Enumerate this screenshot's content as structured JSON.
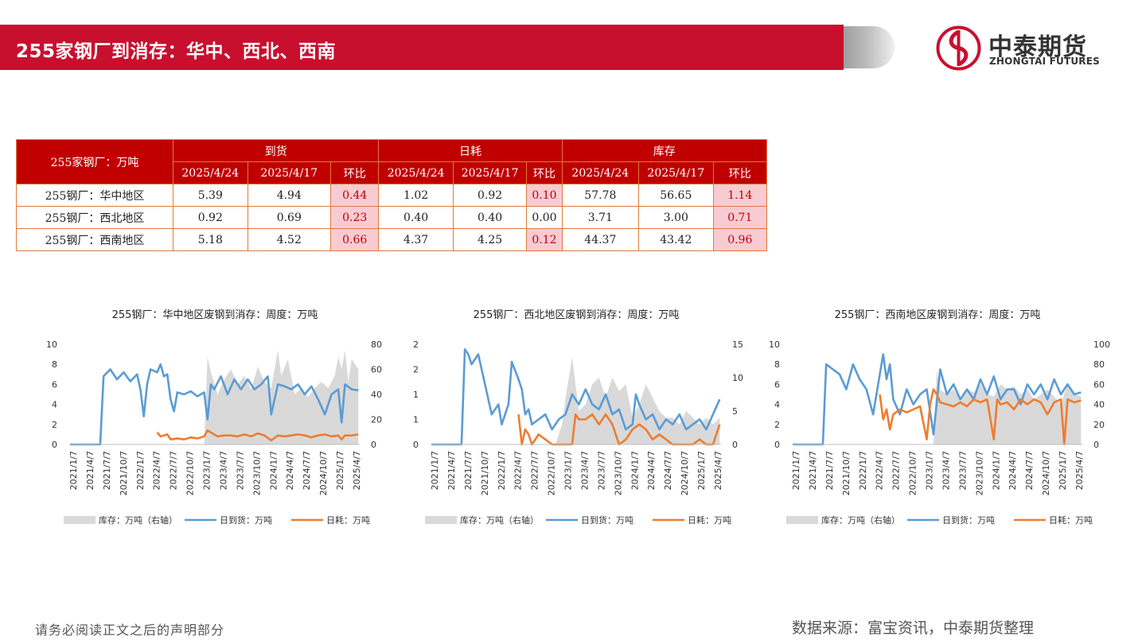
{
  "header": {
    "title": "255家钢厂到消存：华中、西北、西南"
  },
  "logo": {
    "name_cn": "中泰期货",
    "name_en": "ZHONGTAI FUTURES"
  },
  "colors": {
    "brand_red": "#c8102e",
    "table_header": "#c00000",
    "highlight_pink": "#f8cbd3",
    "inventory_gray": "#d9d9d9",
    "arrival_blue": "#5b9bd5",
    "consumption_orange": "#ed7d31"
  },
  "table": {
    "corner": "255家钢厂：万吨",
    "groups": [
      "到货",
      "日耗",
      "库存"
    ],
    "subheaders": [
      "2025/4/24",
      "2025/4/17",
      "环比",
      "2025/4/24",
      "2025/4/17",
      "环比",
      "2025/4/24",
      "2025/4/17",
      "环比"
    ],
    "rows": [
      {
        "label": "255钢厂：华中地区",
        "cells": [
          "5.39",
          "4.94",
          "0.44",
          "1.02",
          "0.92",
          "0.10",
          "57.78",
          "56.65",
          "1.14"
        ]
      },
      {
        "label": "255钢厂：西北地区",
        "cells": [
          "0.92",
          "0.69",
          "0.23",
          "0.40",
          "0.40",
          "0.00",
          "3.71",
          "3.00",
          "0.71"
        ]
      },
      {
        "label": "255钢厂：西南地区",
        "cells": [
          "5.18",
          "4.52",
          "0.66",
          "4.37",
          "4.25",
          "0.12",
          "44.37",
          "43.42",
          "0.96"
        ]
      }
    ]
  },
  "chart_data": [
    {
      "type": "line",
      "title": "255钢厂：华中地区废钢到消存：周度：万吨",
      "x_ticks": [
        "2021/1/7",
        "2021/4/7",
        "2021/7/7",
        "2021/10/7",
        "2022/1/7",
        "2022/4/7",
        "2022/7/7",
        "2022/10/7",
        "2023/1/7",
        "2023/4/7",
        "2023/7/7",
        "2023/10/7",
        "2024/1/7",
        "2024/4/7",
        "2024/7/7",
        "2024/10/7",
        "2025/1/7",
        "2025/4/7"
      ],
      "y_left": {
        "min": 0,
        "max": 10,
        "ticks": [
          "0",
          "2",
          "4",
          "6",
          "8",
          "10"
        ]
      },
      "y_right": {
        "min": 0,
        "max": 80,
        "ticks": [
          "0",
          "20",
          "40",
          "60",
          "80"
        ]
      },
      "legend": [
        "库存：万吨（右轴）",
        "日到货：万吨",
        "日耗：万吨"
      ],
      "series": [
        {
          "name": "库存：万吨（右轴）",
          "kind": "area",
          "axis": "right",
          "x": [
            2023.0,
            2023.05,
            2023.1,
            2023.2,
            2023.3,
            2023.4,
            2023.5,
            2023.6,
            2023.7,
            2023.8,
            2023.9,
            2024.0,
            2024.1,
            2024.15,
            2024.25,
            2024.35,
            2024.45,
            2024.55,
            2024.65,
            2024.75,
            2024.85,
            2024.95,
            2025.0,
            2025.05,
            2025.1,
            2025.15,
            2025.2,
            2025.3
          ],
          "values": [
            0,
            70,
            58,
            40,
            52,
            60,
            48,
            55,
            44,
            62,
            50,
            45,
            75,
            55,
            68,
            40,
            45,
            38,
            45,
            50,
            45,
            55,
            70,
            60,
            75,
            50,
            68,
            60
          ]
        },
        {
          "name": "日到货：万吨",
          "kind": "line",
          "axis": "left",
          "x": [
            2021.0,
            2021.1,
            2021.2,
            2021.3,
            2021.45,
            2021.5,
            2021.6,
            2021.7,
            2021.8,
            2021.9,
            2022.0,
            2022.05,
            2022.1,
            2022.15,
            2022.2,
            2022.3,
            2022.35,
            2022.4,
            2022.45,
            2022.5,
            2022.55,
            2022.6,
            2022.7,
            2022.8,
            2022.9,
            2023.0,
            2023.05,
            2023.1,
            2023.15,
            2023.25,
            2023.35,
            2023.45,
            2023.55,
            2023.65,
            2023.75,
            2023.85,
            2023.95,
            2024.0,
            2024.1,
            2024.2,
            2024.3,
            2024.4,
            2024.5,
            2024.6,
            2024.7,
            2024.8,
            2024.9,
            2025.0,
            2025.05,
            2025.1,
            2025.2,
            2025.3
          ],
          "values": [
            0,
            0,
            0,
            0,
            0,
            6.8,
            7.5,
            6.5,
            7.2,
            6.3,
            7.0,
            5.5,
            2.8,
            6.0,
            7.5,
            7.2,
            8.0,
            6.8,
            7.0,
            4.5,
            3.3,
            5.2,
            5.0,
            5.3,
            4.8,
            5.2,
            2.5,
            6.0,
            5.5,
            6.8,
            5.0,
            6.5,
            5.5,
            6.5,
            5.5,
            6.0,
            6.8,
            3.0,
            6.0,
            5.8,
            5.5,
            6.0,
            5.0,
            5.8,
            4.5,
            3.0,
            5.0,
            5.5,
            2.2,
            6.0,
            5.5,
            5.4
          ]
        },
        {
          "name": "日耗：万吨",
          "kind": "line",
          "axis": "left",
          "x": [
            2022.3,
            2022.35,
            2022.45,
            2022.5,
            2022.6,
            2022.7,
            2022.8,
            2022.9,
            2023.0,
            2023.05,
            2023.1,
            2023.2,
            2023.3,
            2023.4,
            2023.5,
            2023.6,
            2023.7,
            2023.8,
            2023.9,
            2024.0,
            2024.1,
            2024.2,
            2024.3,
            2024.4,
            2024.5,
            2024.6,
            2024.7,
            2024.8,
            2024.9,
            2025.0,
            2025.05,
            2025.1,
            2025.2,
            2025.3
          ],
          "values": [
            1.2,
            0.8,
            1.0,
            0.5,
            0.6,
            0.5,
            0.7,
            0.6,
            0.8,
            1.4,
            1.2,
            0.8,
            0.9,
            0.9,
            0.8,
            1.0,
            0.8,
            1.1,
            0.9,
            0.4,
            0.9,
            0.8,
            0.9,
            1.0,
            0.9,
            0.7,
            0.9,
            1.0,
            0.8,
            0.9,
            0.5,
            0.9,
            0.9,
            1.0
          ]
        }
      ]
    },
    {
      "type": "line",
      "title": "255钢厂：西北地区废钢到消存：周度：万吨",
      "x_ticks": [
        "2021/1/7",
        "2021/4/7",
        "2021/7/7",
        "2021/10/7",
        "2022/1/7",
        "2022/4/7",
        "2022/7/7",
        "2022/10/7",
        "2023/1/7",
        "2023/4/7",
        "2023/7/7",
        "2023/10/7",
        "2024/1/7",
        "2024/4/7",
        "2024/7/7",
        "2024/10/7",
        "2025/1/7",
        "2025/4/7"
      ],
      "y_left": {
        "min": 0,
        "max": 2,
        "ticks": [
          "0",
          "1",
          "1",
          "2",
          "2"
        ]
      },
      "y_right": {
        "min": 0,
        "max": 15,
        "ticks": [
          "0",
          "5",
          "10",
          "15"
        ]
      },
      "legend": [
        "库存：万吨（右轴）",
        "日到货：万吨",
        "日耗：万吨"
      ],
      "series": [
        {
          "name": "库存：万吨（右轴）",
          "kind": "area",
          "axis": "right",
          "x": [
            2022.85,
            2022.95,
            2023.0,
            2023.1,
            2023.2,
            2023.3,
            2023.4,
            2023.5,
            2023.6,
            2023.7,
            2023.8,
            2023.9,
            2024.0,
            2024.1,
            2024.2,
            2024.3,
            2024.4,
            2024.5,
            2024.6,
            2024.7,
            2024.8,
            2024.9,
            2025.0,
            2025.1,
            2025.2,
            2025.3
          ],
          "values": [
            0,
            3,
            7,
            13,
            5,
            6,
            9,
            10,
            7,
            10,
            8,
            9,
            4,
            6,
            9,
            7,
            5,
            4,
            4,
            3,
            5,
            4,
            3,
            4,
            3,
            4
          ]
        },
        {
          "name": "日到货：万吨",
          "kind": "line",
          "axis": "left",
          "x": [
            2021.0,
            2021.1,
            2021.2,
            2021.3,
            2021.45,
            2021.5,
            2021.55,
            2021.6,
            2021.7,
            2021.8,
            2021.9,
            2022.0,
            2022.05,
            2022.1,
            2022.15,
            2022.2,
            2022.3,
            2022.35,
            2022.4,
            2022.45,
            2022.5,
            2022.6,
            2022.7,
            2022.8,
            2022.9,
            2023.0,
            2023.1,
            2023.2,
            2023.3,
            2023.4,
            2023.5,
            2023.6,
            2023.7,
            2023.8,
            2023.9,
            2024.0,
            2024.05,
            2024.1,
            2024.2,
            2024.3,
            2024.4,
            2024.5,
            2024.6,
            2024.7,
            2024.8,
            2024.9,
            2025.0,
            2025.1,
            2025.2,
            2025.3
          ],
          "values": [
            0,
            0,
            0,
            0,
            0,
            1.9,
            1.8,
            1.6,
            1.8,
            1.2,
            0.6,
            0.8,
            0.4,
            0.6,
            0.8,
            1.65,
            1.3,
            1.1,
            0.6,
            0.7,
            0.4,
            0.5,
            0.6,
            0.3,
            0.5,
            0.6,
            1.0,
            0.8,
            1.1,
            0.8,
            0.7,
            1.0,
            0.6,
            0.7,
            0.3,
            0.4,
            1.0,
            0.8,
            0.5,
            0.6,
            0.3,
            0.5,
            0.4,
            0.6,
            0.3,
            0.4,
            0.5,
            0.3,
            0.6,
            0.9
          ]
        },
        {
          "name": "日耗：万吨",
          "kind": "line",
          "axis": "left",
          "x": [
            2022.3,
            2022.35,
            2022.4,
            2022.45,
            2022.5,
            2022.6,
            2022.7,
            2022.8,
            2022.9,
            2023.0,
            2023.1,
            2023.15,
            2023.2,
            2023.3,
            2023.4,
            2023.5,
            2023.6,
            2023.7,
            2023.8,
            2023.9,
            2024.0,
            2024.1,
            2024.2,
            2024.3,
            2024.4,
            2024.5,
            2024.6,
            2024.7,
            2024.8,
            2024.9,
            2025.0,
            2025.1,
            2025.2,
            2025.3
          ],
          "values": [
            0.6,
            0.0,
            0.3,
            0.2,
            0.0,
            0.2,
            0.1,
            0.0,
            0.0,
            0.0,
            0.0,
            0.6,
            0.5,
            0.5,
            0.6,
            0.4,
            0.6,
            0.4,
            0.0,
            0.1,
            0.3,
            0.4,
            0.3,
            0.1,
            0.2,
            0.1,
            0.0,
            0.0,
            0.0,
            0.0,
            0.1,
            0.0,
            0.0,
            0.4
          ]
        }
      ]
    },
    {
      "type": "line",
      "title": "255钢厂：西南地区废钢到消存：周度：万吨",
      "x_ticks": [
        "2021/1/7",
        "2021/4/7",
        "2021/7/7",
        "2021/10/7",
        "2022/1/7",
        "2022/4/7",
        "2022/7/7",
        "2022/10/7",
        "2023/1/7",
        "2023/4/7",
        "2023/7/7",
        "2023/10/7",
        "2024/1/7",
        "2024/4/7",
        "2024/7/7",
        "2024/10/7",
        "2025/1/7",
        "2025/4/7"
      ],
      "y_left": {
        "min": 0,
        "max": 10,
        "ticks": [
          "0",
          "2",
          "4",
          "6",
          "8",
          "10"
        ]
      },
      "y_right": {
        "min": 0,
        "max": 100,
        "ticks": [
          "0",
          "20",
          "40",
          "60",
          "80",
          "100"
        ]
      },
      "legend": [
        "库存：万吨（右轴）",
        "日到货：万吨",
        "日耗：万吨"
      ],
      "series": [
        {
          "name": "库存：万吨（右轴）",
          "kind": "area",
          "axis": "right",
          "x": [
            2023.1,
            2023.15,
            2023.2,
            2023.3,
            2023.4,
            2023.5,
            2023.6,
            2023.7,
            2023.8,
            2023.9,
            2024.0,
            2024.1,
            2024.2,
            2024.3,
            2024.4,
            2024.5,
            2024.6,
            2024.7,
            2024.8,
            2024.9,
            2025.0,
            2025.1,
            2025.2,
            2025.3
          ],
          "values": [
            0,
            75,
            55,
            50,
            55,
            45,
            55,
            52,
            60,
            50,
            48,
            60,
            55,
            58,
            50,
            55,
            45,
            50,
            55,
            48,
            40,
            60,
            50,
            48
          ]
        },
        {
          "name": "日到货：万吨",
          "kind": "line",
          "axis": "left",
          "x": [
            2021.0,
            2021.1,
            2021.2,
            2021.3,
            2021.45,
            2021.5,
            2021.6,
            2021.7,
            2021.8,
            2021.9,
            2022.0,
            2022.1,
            2022.2,
            2022.3,
            2022.35,
            2022.4,
            2022.45,
            2022.5,
            2022.6,
            2022.7,
            2022.8,
            2022.9,
            2023.0,
            2023.1,
            2023.2,
            2023.3,
            2023.4,
            2023.5,
            2023.6,
            2023.7,
            2023.8,
            2023.9,
            2024.0,
            2024.1,
            2024.2,
            2024.3,
            2024.4,
            2024.5,
            2024.6,
            2024.7,
            2024.8,
            2024.9,
            2025.0,
            2025.1,
            2025.2,
            2025.3
          ],
          "values": [
            0,
            0,
            0,
            0,
            0,
            8.0,
            7.5,
            7.0,
            5.5,
            8.0,
            6.5,
            5.5,
            3.0,
            7.0,
            9.0,
            6.5,
            8.0,
            4.5,
            3.0,
            5.5,
            4.0,
            5.0,
            5.5,
            1.0,
            7.5,
            5.0,
            6.0,
            4.5,
            5.5,
            4.5,
            6.5,
            5.0,
            6.8,
            4.5,
            5.5,
            5.5,
            4.0,
            6.0,
            5.0,
            6.0,
            4.5,
            6.5,
            5.0,
            6.0,
            5.0,
            5.2
          ]
        },
        {
          "name": "日耗：万吨",
          "kind": "line",
          "axis": "left",
          "x": [
            2022.3,
            2022.35,
            2022.4,
            2022.45,
            2022.5,
            2022.6,
            2022.7,
            2022.8,
            2022.9,
            2023.0,
            2023.05,
            2023.1,
            2023.15,
            2023.2,
            2023.3,
            2023.4,
            2023.5,
            2023.6,
            2023.7,
            2023.8,
            2023.9,
            2024.0,
            2024.05,
            2024.1,
            2024.2,
            2024.3,
            2024.4,
            2024.5,
            2024.6,
            2024.7,
            2024.8,
            2024.9,
            2025.0,
            2025.05,
            2025.1,
            2025.2,
            2025.3
          ],
          "values": [
            5.0,
            2.5,
            3.5,
            1.5,
            3.0,
            3.5,
            3.2,
            3.5,
            3.8,
            0.5,
            4.0,
            5.5,
            5.0,
            4.2,
            4.0,
            3.8,
            4.2,
            3.8,
            4.5,
            4.2,
            4.5,
            0.5,
            4.5,
            4.0,
            4.2,
            3.5,
            4.5,
            4.0,
            4.5,
            4.2,
            3.0,
            4.2,
            4.5,
            0,
            4.5,
            4.2,
            4.4
          ]
        }
      ]
    }
  ],
  "footer": {
    "disclaimer": "请务必阅读正文之后的声明部分",
    "source": "数据来源：富宝资讯，中泰期货整理"
  }
}
